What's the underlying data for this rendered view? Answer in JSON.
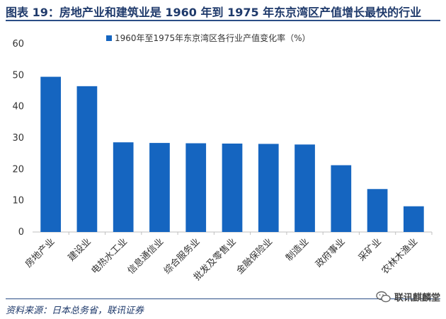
{
  "title": "图表 19：房地产业和建筑业是 1960 年到 1975 年东京湾区产值增长最快的行业",
  "source": "资料来源：日本总务省，联讯证券",
  "watermark": "联讯麒麟堂",
  "chart_data": {
    "type": "bar",
    "categories": [
      "房地产业",
      "建设业",
      "电热水工业",
      "信息通信业",
      "综合服务业",
      "批发及零售业",
      "金融保险业",
      "制造业",
      "政府事业",
      "采矿业",
      "农林木渔业"
    ],
    "series": [
      {
        "name": "1960年至1975年东京湾区各行业产值变化率（%）",
        "values": [
          49.5,
          46.5,
          28.6,
          28.4,
          28.3,
          28.2,
          28.1,
          27.9,
          21.3,
          13.7,
          8.2
        ]
      }
    ],
    "ylim": [
      0,
      60
    ],
    "yticks": [
      0,
      10,
      20,
      30,
      40,
      50,
      60
    ],
    "legend": "top",
    "grid": false,
    "color": "#1565c0"
  }
}
